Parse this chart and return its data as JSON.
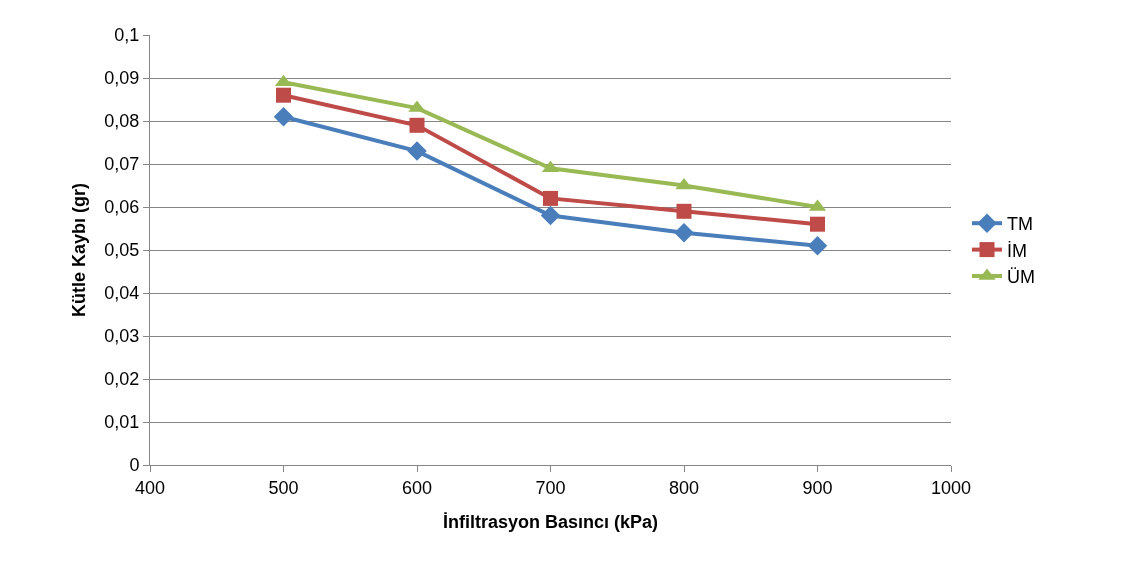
{
  "chart_data": {
    "type": "line",
    "xlabel": "İnfiltrasyon Basıncı (kPa)",
    "ylabel": "Kütle Kaybı (gr)",
    "x": [
      500,
      600,
      700,
      800,
      900
    ],
    "series": [
      {
        "name": "TM",
        "color": "#4a7ebb",
        "marker": "diamond",
        "values": [
          0.081,
          0.073,
          0.058,
          0.054,
          0.051
        ]
      },
      {
        "name": "İM",
        "color": "#be4b48",
        "marker": "square",
        "values": [
          0.086,
          0.079,
          0.062,
          0.059,
          0.056
        ]
      },
      {
        "name": "ÜM",
        "color": "#98b954",
        "marker": "triangle",
        "values": [
          0.089,
          0.083,
          0.069,
          0.065,
          0.06
        ]
      }
    ],
    "xlim": [
      400,
      1000
    ],
    "xticks": [
      400,
      500,
      600,
      700,
      800,
      900,
      1000
    ],
    "ylim": [
      0,
      0.1
    ],
    "yticks": [
      0,
      {
        "value": 0.01,
        "label": "0,01"
      },
      {
        "value": 0.02,
        "label": "0,02"
      },
      {
        "value": 0.03,
        "label": "0,03"
      },
      {
        "value": 0.04,
        "label": "0,04"
      },
      {
        "value": 0.05,
        "label": "0,05"
      },
      {
        "value": 0.06,
        "label": "0,06"
      },
      {
        "value": 0.07,
        "label": "0,07"
      },
      {
        "value": 0.08,
        "label": "0,08"
      },
      {
        "value": 0.09,
        "label": "0,09"
      },
      {
        "value": 0.1,
        "label": "0,1"
      }
    ],
    "grid": "y",
    "legend": "right",
    "line_style": "solid"
  }
}
